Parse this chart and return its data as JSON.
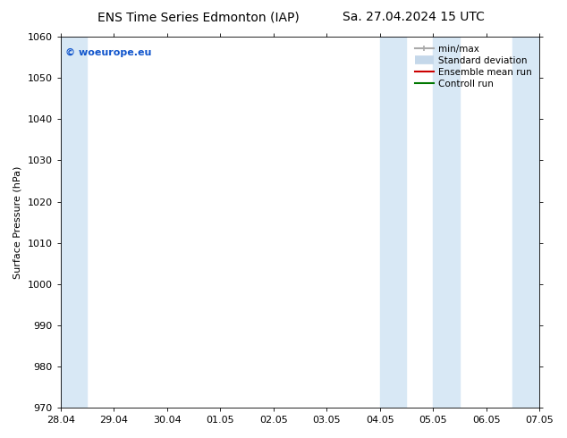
{
  "title_left": "ENS Time Series Edmonton (IAP)",
  "title_right": "Sa. 27.04.2024 15 UTC",
  "ylabel": "Surface Pressure (hPa)",
  "ylim": [
    970,
    1060
  ],
  "yticks": [
    970,
    980,
    990,
    1000,
    1010,
    1020,
    1030,
    1040,
    1050,
    1060
  ],
  "xlim_start": 0,
  "xlim_end": 9,
  "xtick_labels": [
    "28.04",
    "29.04",
    "30.04",
    "01.05",
    "02.05",
    "03.05",
    "04.05",
    "05.05",
    "06.05",
    "07.05"
  ],
  "xtick_positions": [
    0,
    1,
    2,
    3,
    4,
    5,
    6,
    7,
    8,
    9
  ],
  "shaded_bands": [
    {
      "x_start": 0.0,
      "x_end": 0.5
    },
    {
      "x_start": 6.0,
      "x_end": 6.5
    },
    {
      "x_start": 7.0,
      "x_end": 7.5
    },
    {
      "x_start": 8.5,
      "x_end": 9.0
    }
  ],
  "shaded_color": "#d8e8f5",
  "watermark_text": "© woeurope.eu",
  "watermark_color": "#1155cc",
  "legend_items": [
    {
      "label": "min/max",
      "color": "#aaaaaa",
      "lw": 1.5
    },
    {
      "label": "Standard deviation",
      "color": "#c5d8ea",
      "lw": 7
    },
    {
      "label": "Ensemble mean run",
      "color": "#cc0000",
      "lw": 1.5
    },
    {
      "label": "Controll run",
      "color": "#007700",
      "lw": 1.5
    }
  ],
  "bg_color": "#ffffff",
  "title_fontsize": 10,
  "ylabel_fontsize": 8,
  "tick_fontsize": 8,
  "legend_fontsize": 7.5,
  "watermark_fontsize": 8
}
